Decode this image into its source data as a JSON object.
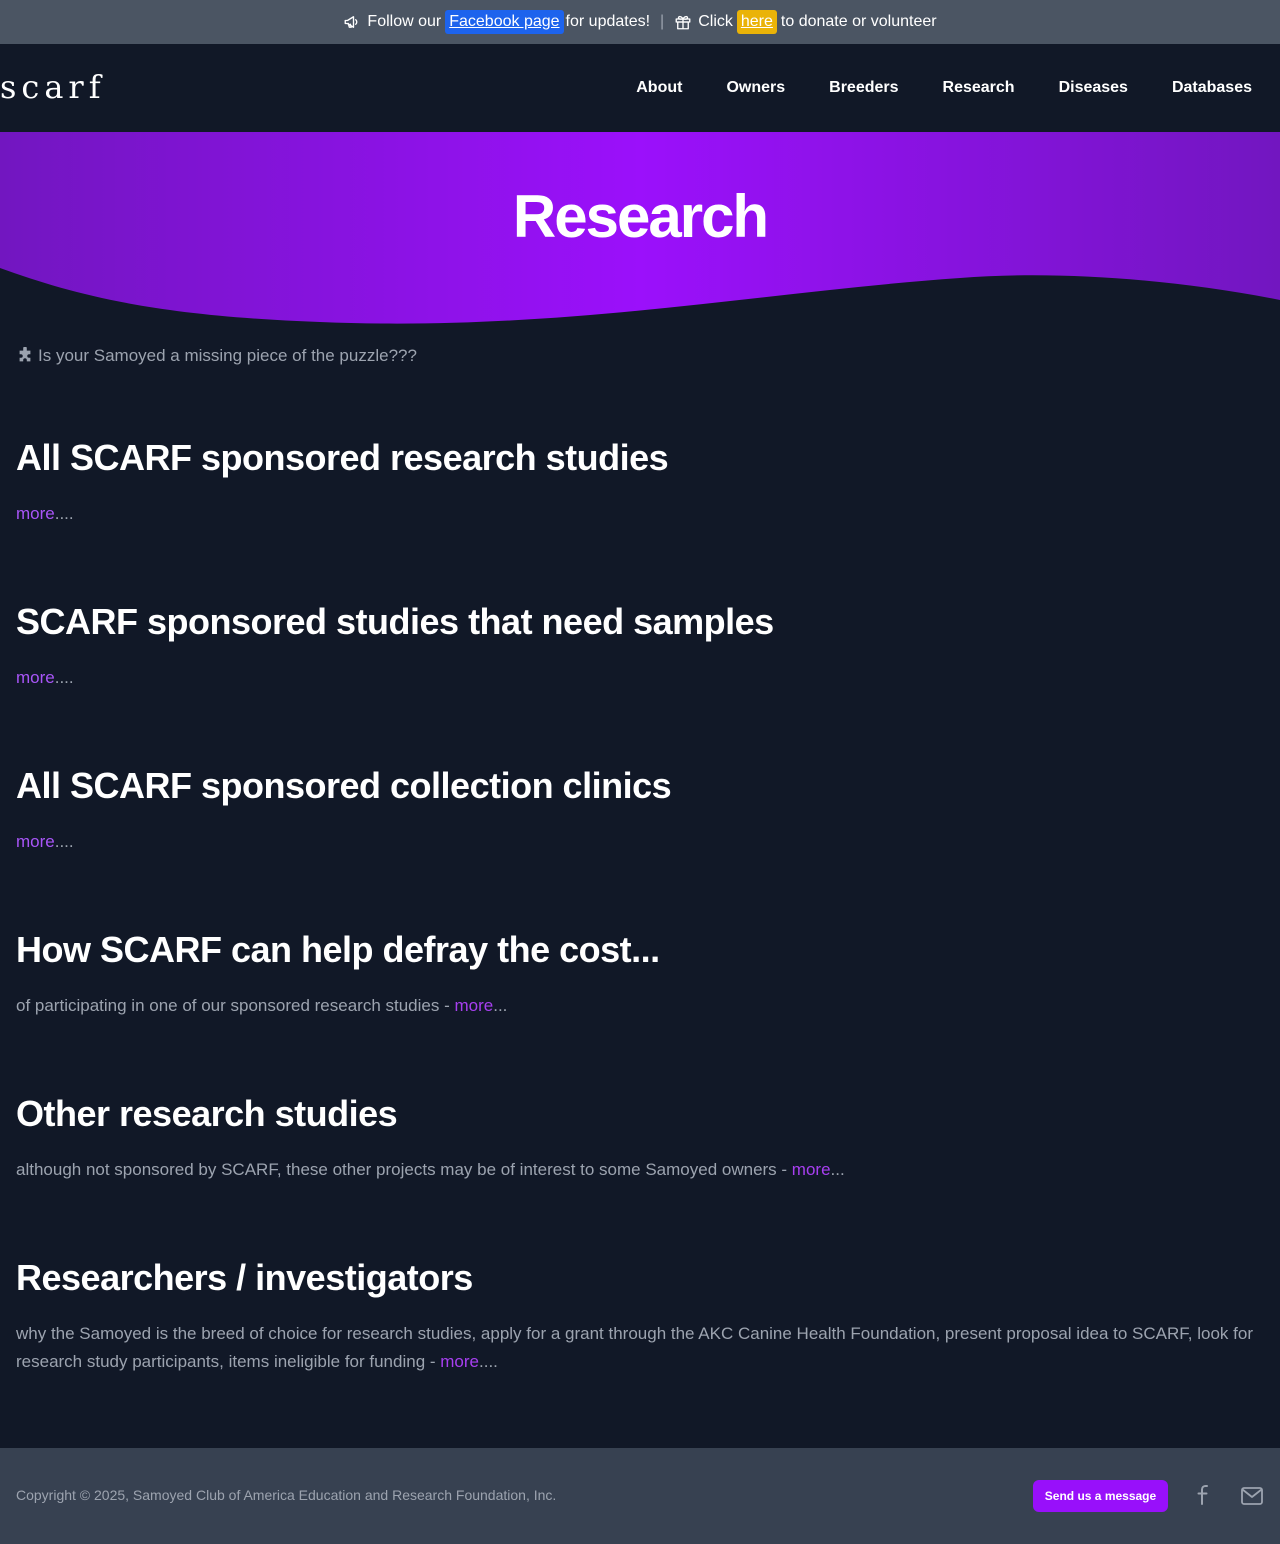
{
  "topbar": {
    "follow_prefix": "Follow our",
    "facebook_link": "Facebook page",
    "follow_suffix": "for updates!",
    "separator": "|",
    "click_prefix": "Click",
    "here_link": "here",
    "click_suffix": "to donate or volunteer",
    "icons": [
      "megaphone-icon",
      "gift-icon"
    ]
  },
  "navbar": {
    "logo": "scarf",
    "items": [
      "About",
      "Owners",
      "Breeders",
      "Research",
      "Diseases",
      "Databases"
    ]
  },
  "hero": {
    "title": "Research",
    "colors": {
      "start": "#7216c0",
      "mid": "#9b10fb",
      "end": "#7216c0"
    }
  },
  "intro": {
    "text": "Is your Samoyed a missing piece of the puzzle???",
    "icon": "puzzle-icon"
  },
  "sections": [
    {
      "title": "All SCARF sponsored research studies",
      "text": "",
      "link": "more",
      "suffix": "...."
    },
    {
      "title": "SCARF sponsored studies that need samples",
      "text": "",
      "link": "more",
      "suffix": "...."
    },
    {
      "title": "All SCARF sponsored collection clinics",
      "text": "",
      "link": "more",
      "suffix": "...."
    },
    {
      "title": "How SCARF can help defray the cost...",
      "text": "of participating in one of our sponsored research studies - ",
      "link": "more",
      "suffix": "..."
    },
    {
      "title": "Other research studies",
      "text": "although not sponsored by SCARF, these other projects may be of interest to some Samoyed owners - ",
      "link": "more",
      "suffix": "..."
    },
    {
      "title": "Researchers / investigators",
      "text": "why the Samoyed is the breed of choice for research studies, apply for a grant through the AKC Canine Health Foundation, present proposal idea to SCARF, look for research study participants, items ineligible for funding - ",
      "link": "more",
      "suffix": "...."
    }
  ],
  "footer": {
    "copyright": "Copyright © 2025, Samoyed Club of America Education and Research Foundation, Inc.",
    "button": "Send us a message",
    "icons": [
      "facebook-icon",
      "mail-icon"
    ]
  },
  "colors": {
    "background": "#111827",
    "topbar": "#4b5563",
    "footer": "#374151",
    "accent": "#9810fa",
    "link": "#a855f7"
  }
}
